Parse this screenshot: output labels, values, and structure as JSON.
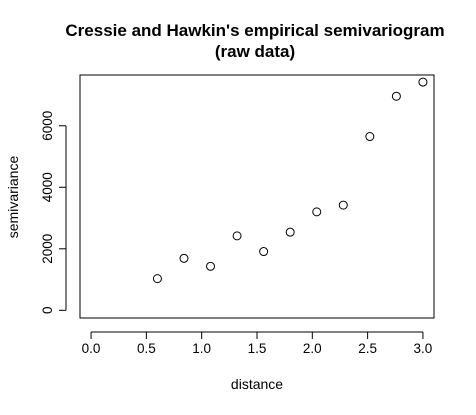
{
  "chart_data": {
    "type": "scatter",
    "title": "Cressie and Hawkin's empirical semivariogram",
    "subtitle": "(raw data)",
    "xlabel": "distance",
    "ylabel": "semivariance",
    "xlim": [
      -0.1,
      3.1
    ],
    "ylim": [
      -250,
      7650
    ],
    "x_ticks": [
      0.0,
      0.5,
      1.0,
      1.5,
      2.0,
      2.5,
      3.0
    ],
    "x_tick_labels": [
      "0.0",
      "0.5",
      "1.0",
      "1.5",
      "2.0",
      "2.5",
      "3.0"
    ],
    "y_ticks": [
      0,
      2000,
      4000,
      6000
    ],
    "y_tick_labels": [
      "0",
      "2000",
      "4000",
      "6000"
    ],
    "grid": false,
    "legend": "none",
    "marker": "open-circle",
    "points": [
      {
        "x": 0.6,
        "y": 1030
      },
      {
        "x": 0.84,
        "y": 1690
      },
      {
        "x": 1.08,
        "y": 1430
      },
      {
        "x": 1.32,
        "y": 2420
      },
      {
        "x": 1.56,
        "y": 1910
      },
      {
        "x": 1.8,
        "y": 2540
      },
      {
        "x": 2.04,
        "y": 3200
      },
      {
        "x": 2.28,
        "y": 3420
      },
      {
        "x": 2.52,
        "y": 5650
      },
      {
        "x": 2.76,
        "y": 6960
      },
      {
        "x": 3.0,
        "y": 7420
      }
    ]
  }
}
